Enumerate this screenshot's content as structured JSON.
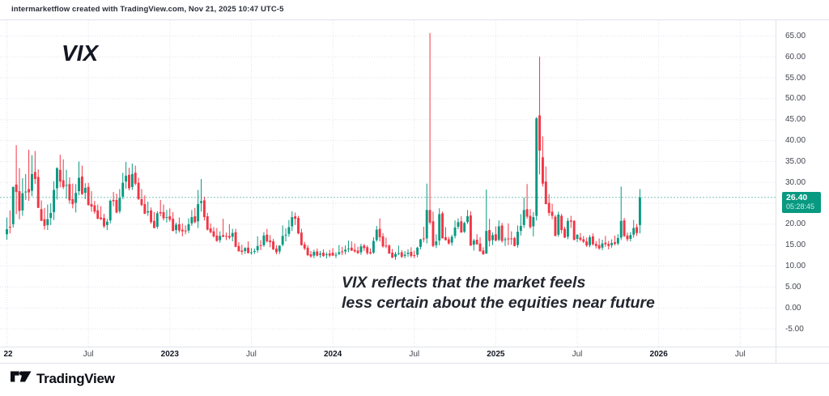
{
  "header": {
    "credit": "intermarketflow created with TradingView.com, Nov 21, 2025 10:47 UTC-5"
  },
  "title": {
    "symbol": "VIX"
  },
  "annotation": {
    "line1": "VIX reflects that the market feels",
    "line2": "less certain about the equities near future"
  },
  "price_badge": {
    "price": "26.40",
    "countdown": "05:28:45"
  },
  "footer": {
    "brand": "TradingView"
  },
  "colors": {
    "up": "#089981",
    "down": "#f23645",
    "grid": "#dde1e9",
    "axis_border": "#e0e3eb",
    "price_line": "#089981",
    "badge_bg": "#089981",
    "text_dark": "#131722",
    "axis_text": "#42464f"
  },
  "price_axis": {
    "ticks": [
      {
        "label": "65.00",
        "value": 65
      },
      {
        "label": "60.00",
        "value": 60
      },
      {
        "label": "55.00",
        "value": 55
      },
      {
        "label": "50.00",
        "value": 50
      },
      {
        "label": "45.00",
        "value": 45
      },
      {
        "label": "40.00",
        "value": 40
      },
      {
        "label": "35.00",
        "value": 35
      },
      {
        "label": "30.00",
        "value": 30
      },
      {
        "label": "25.00",
        "value": 25
      },
      {
        "label": "20.00",
        "value": 20
      },
      {
        "label": "15.00",
        "value": 15
      },
      {
        "label": "10.00",
        "value": 10
      },
      {
        "label": "5.00",
        "value": 5
      },
      {
        "label": "0.00",
        "value": 0
      },
      {
        "label": "-5.00",
        "value": -5
      }
    ]
  },
  "time_axis": {
    "ticks": [
      {
        "label": "22",
        "week": 0,
        "bold": true
      },
      {
        "label": "Jul",
        "week": 26,
        "bold": false
      },
      {
        "label": "2023",
        "week": 52,
        "bold": true
      },
      {
        "label": "Jul",
        "week": 78,
        "bold": false
      },
      {
        "label": "2024",
        "week": 104,
        "bold": true
      },
      {
        "label": "Jul",
        "week": 130,
        "bold": false
      },
      {
        "label": "2025",
        "week": 156,
        "bold": true
      },
      {
        "label": "Jul",
        "week": 182,
        "bold": false
      },
      {
        "label": "2026",
        "week": 208,
        "bold": true
      },
      {
        "label": "Jul",
        "week": 234,
        "bold": false
      }
    ]
  },
  "chart_data": {
    "type": "candlestick",
    "symbol": "VIX",
    "timeframe": "weekly",
    "ylim": [
      -9.25,
      68.75
    ],
    "grid": true,
    "last_price": 26.4,
    "x_start_label": "Jan 2022",
    "x_end_label": "Nov 2025",
    "ohlc_weekly": [
      [
        17.6,
        21.6,
        16.3,
        18.8
      ],
      [
        19.4,
        23.3,
        17.8,
        19.2
      ],
      [
        20.0,
        29.0,
        19.2,
        28.9
      ],
      [
        29.5,
        38.9,
        22.4,
        27.7
      ],
      [
        27.9,
        33.4,
        21.2,
        23.2
      ],
      [
        23.3,
        31.0,
        22.0,
        27.4
      ],
      [
        27.7,
        32.0,
        25.8,
        27.8
      ],
      [
        28.4,
        37.8,
        25.6,
        27.6
      ],
      [
        28.0,
        36.5,
        26.7,
        32.0
      ],
      [
        32.5,
        37.5,
        29.6,
        30.8
      ],
      [
        31.3,
        33.1,
        23.9,
        23.9
      ],
      [
        23.6,
        25.7,
        20.8,
        20.8
      ],
      [
        21.2,
        23.9,
        18.7,
        19.6
      ],
      [
        19.8,
        24.7,
        18.6,
        21.2
      ],
      [
        21.5,
        25.0,
        19.8,
        22.7
      ],
      [
        22.9,
        30.3,
        21.0,
        28.2
      ],
      [
        28.6,
        33.6,
        25.9,
        33.4
      ],
      [
        33.0,
        36.6,
        28.8,
        30.2
      ],
      [
        30.5,
        35.5,
        28.4,
        28.9
      ],
      [
        29.2,
        33.0,
        26.1,
        29.4
      ],
      [
        29.6,
        31.2,
        24.9,
        25.7
      ],
      [
        26.0,
        29.7,
        23.8,
        24.8
      ],
      [
        25.1,
        29.6,
        22.8,
        27.5
      ],
      [
        27.9,
        35.0,
        26.9,
        31.1
      ],
      [
        31.4,
        34.0,
        27.0,
        27.2
      ],
      [
        27.5,
        29.8,
        26.0,
        28.7
      ],
      [
        28.9,
        29.9,
        24.4,
        24.6
      ],
      [
        24.8,
        27.9,
        23.0,
        24.2
      ],
      [
        24.5,
        25.6,
        22.5,
        23.0
      ],
      [
        23.3,
        24.7,
        21.2,
        21.3
      ],
      [
        21.6,
        24.3,
        21.0,
        21.2
      ],
      [
        21.5,
        22.5,
        19.1,
        19.5
      ],
      [
        19.8,
        21.3,
        18.6,
        20.6
      ],
      [
        20.9,
        25.9,
        20.2,
        25.6
      ],
      [
        25.8,
        27.7,
        24.3,
        25.5
      ],
      [
        25.8,
        27.3,
        22.6,
        22.8
      ],
      [
        23.1,
        28.4,
        22.6,
        26.3
      ],
      [
        26.6,
        32.3,
        26.0,
        29.9
      ],
      [
        30.2,
        34.9,
        28.5,
        31.6
      ],
      [
        31.8,
        33.5,
        28.1,
        28.6
      ],
      [
        28.9,
        34.5,
        28.2,
        32.0
      ],
      [
        32.3,
        34.0,
        29.3,
        29.7
      ],
      [
        29.9,
        31.1,
        25.8,
        26.0
      ],
      [
        26.0,
        28.4,
        24.3,
        24.6
      ],
      [
        24.8,
        26.9,
        22.4,
        22.5
      ],
      [
        22.8,
        25.4,
        22.0,
        23.1
      ],
      [
        23.3,
        24.0,
        20.1,
        20.5
      ],
      [
        20.8,
        22.9,
        19.0,
        19.1
      ],
      [
        19.4,
        23.1,
        18.9,
        22.6
      ],
      [
        22.9,
        25.8,
        21.9,
        22.6
      ],
      [
        22.9,
        24.7,
        20.9,
        21.4
      ],
      [
        21.6,
        23.4,
        20.4,
        21.7
      ],
      [
        21.9,
        23.8,
        20.6,
        21.1
      ],
      [
        21.3,
        22.9,
        18.3,
        18.4
      ],
      [
        18.6,
        20.4,
        17.7,
        19.9
      ],
      [
        20.0,
        21.6,
        18.0,
        18.5
      ],
      [
        18.7,
        20.2,
        17.1,
        18.3
      ],
      [
        18.5,
        19.7,
        17.6,
        18.3
      ],
      [
        18.5,
        21.4,
        17.9,
        20.0
      ],
      [
        20.2,
        23.4,
        19.6,
        21.7
      ],
      [
        21.9,
        23.9,
        20.2,
        20.5
      ],
      [
        20.7,
        28.2,
        19.1,
        24.8
      ],
      [
        25.1,
        30.8,
        23.0,
        25.5
      ],
      [
        25.7,
        26.6,
        20.9,
        21.7
      ],
      [
        21.9,
        22.7,
        18.5,
        18.7
      ],
      [
        19.0,
        20.2,
        17.8,
        18.1
      ],
      [
        18.3,
        19.3,
        16.8,
        17.1
      ],
      [
        17.3,
        19.1,
        15.8,
        16.0
      ],
      [
        16.2,
        18.3,
        15.6,
        17.2
      ],
      [
        17.4,
        21.3,
        16.9,
        17.0
      ],
      [
        17.2,
        18.0,
        16.2,
        17.0
      ],
      [
        17.2,
        20.0,
        16.4,
        16.8
      ],
      [
        17.0,
        18.9,
        15.9,
        17.9
      ],
      [
        18.1,
        18.9,
        14.5,
        14.6
      ],
      [
        14.8,
        15.7,
        13.5,
        13.5
      ],
      [
        13.7,
        15.1,
        12.7,
        13.4
      ],
      [
        13.6,
        14.5,
        12.9,
        14.3
      ],
      [
        14.4,
        15.9,
        13.0,
        13.1
      ],
      [
        13.3,
        14.3,
        12.7,
        13.3
      ],
      [
        13.5,
        14.2,
        12.9,
        13.6
      ],
      [
        13.8,
        17.1,
        13.2,
        14.8
      ],
      [
        15.0,
        16.2,
        13.8,
        14.8
      ],
      [
        15.0,
        18.1,
        14.6,
        17.3
      ],
      [
        17.5,
        18.9,
        15.6,
        15.9
      ],
      [
        16.1,
        17.4,
        14.5,
        15.7
      ],
      [
        15.9,
        16.5,
        13.8,
        14.0
      ],
      [
        14.2,
        15.0,
        12.8,
        13.3
      ],
      [
        13.5,
        14.9,
        12.9,
        14.9
      ],
      [
        15.1,
        19.7,
        14.7,
        17.2
      ],
      [
        17.4,
        19.0,
        15.9,
        17.5
      ],
      [
        17.7,
        21.0,
        17.0,
        19.3
      ],
      [
        19.5,
        23.1,
        18.4,
        21.7
      ],
      [
        21.9,
        22.8,
        19.8,
        21.3
      ],
      [
        21.5,
        22.0,
        17.6,
        17.8
      ],
      [
        18.0,
        18.9,
        14.9,
        15.0
      ],
      [
        15.2,
        15.8,
        13.8,
        14.2
      ],
      [
        14.4,
        15.0,
        12.4,
        12.6
      ],
      [
        12.8,
        13.6,
        12.0,
        12.3
      ],
      [
        12.5,
        13.9,
        11.9,
        13.4
      ],
      [
        13.5,
        14.2,
        12.3,
        12.5
      ],
      [
        12.7,
        13.6,
        12.0,
        13.0
      ],
      [
        13.2,
        14.0,
        12.2,
        12.4
      ],
      [
        12.6,
        13.3,
        11.8,
        12.8
      ],
      [
        13.0,
        13.9,
        12.1,
        12.5
      ],
      [
        13.2,
        14.3,
        12.4,
        12.5
      ],
      [
        12.7,
        13.3,
        11.9,
        12.7
      ],
      [
        12.9,
        15.0,
        12.6,
        13.3
      ],
      [
        13.5,
        14.6,
        12.6,
        13.3
      ],
      [
        13.5,
        14.9,
        12.8,
        13.9
      ],
      [
        14.1,
        16.1,
        13.3,
        14.2
      ],
      [
        14.4,
        15.9,
        13.6,
        13.7
      ],
      [
        13.9,
        15.4,
        13.2,
        13.5
      ],
      [
        13.7,
        14.6,
        12.9,
        13.1
      ],
      [
        13.3,
        15.3,
        12.7,
        14.7
      ],
      [
        14.9,
        15.3,
        13.6,
        14.3
      ],
      [
        14.5,
        14.9,
        12.7,
        13.1
      ],
      [
        13.3,
        14.2,
        12.8,
        13.0
      ],
      [
        13.2,
        16.9,
        12.9,
        16.0
      ],
      [
        16.2,
        19.6,
        15.8,
        18.7
      ],
      [
        18.9,
        21.4,
        15.9,
        16.9
      ],
      [
        17.1,
        17.9,
        14.4,
        14.7
      ],
      [
        14.9,
        16.8,
        14.3,
        14.7
      ],
      [
        14.9,
        15.2,
        12.9,
        13.0
      ],
      [
        13.2,
        14.1,
        11.9,
        12.0
      ],
      [
        12.2,
        13.4,
        11.5,
        12.9
      ],
      [
        13.1,
        14.9,
        12.6,
        13.1
      ],
      [
        13.3,
        13.8,
        11.9,
        12.2
      ],
      [
        12.4,
        13.6,
        11.9,
        12.7
      ],
      [
        12.9,
        14.0,
        12.2,
        13.2
      ],
      [
        13.4,
        14.5,
        12.0,
        12.4
      ],
      [
        12.6,
        13.7,
        11.9,
        12.5
      ],
      [
        12.7,
        14.6,
        12.1,
        14.4
      ],
      [
        14.6,
        16.5,
        14.0,
        16.4
      ],
      [
        16.6,
        19.4,
        15.7,
        16.4
      ],
      [
        16.6,
        29.7,
        15.4,
        23.4
      ],
      [
        23.4,
        65.7,
        19.9,
        20.4
      ],
      [
        20.7,
        23.0,
        14.5,
        14.8
      ],
      [
        15.0,
        17.6,
        14.3,
        15.9
      ],
      [
        16.1,
        23.8,
        15.0,
        22.4
      ],
      [
        22.6,
        23.0,
        16.6,
        16.6
      ],
      [
        16.9,
        19.3,
        16.1,
        16.2
      ],
      [
        16.4,
        17.0,
        15.1,
        15.4
      ],
      [
        15.6,
        17.5,
        14.9,
        17.0
      ],
      [
        17.2,
        20.9,
        16.6,
        19.2
      ],
      [
        19.4,
        21.4,
        18.8,
        20.5
      ],
      [
        20.7,
        21.9,
        18.0,
        18.0
      ],
      [
        18.2,
        20.6,
        17.9,
        20.3
      ],
      [
        20.5,
        23.4,
        20.1,
        21.9
      ],
      [
        22.1,
        23.1,
        14.8,
        14.9
      ],
      [
        15.1,
        16.5,
        13.7,
        16.1
      ],
      [
        16.3,
        17.6,
        15.1,
        15.2
      ],
      [
        15.4,
        16.9,
        13.5,
        13.5
      ],
      [
        13.7,
        14.5,
        12.7,
        12.8
      ],
      [
        13.0,
        28.3,
        12.9,
        18.4
      ],
      [
        18.6,
        21.3,
        14.7,
        16.0
      ],
      [
        16.2,
        18.0,
        15.0,
        17.4
      ],
      [
        17.6,
        19.5,
        15.9,
        16.1
      ],
      [
        16.3,
        20.9,
        15.9,
        19.5
      ],
      [
        19.7,
        20.3,
        15.6,
        16.0
      ],
      [
        16.2,
        16.9,
        14.8,
        16.4
      ],
      [
        16.6,
        20.2,
        15.0,
        16.4
      ],
      [
        16.6,
        18.3,
        15.1,
        16.5
      ],
      [
        16.7,
        17.0,
        14.7,
        14.8
      ],
      [
        15.0,
        19.7,
        14.4,
        18.2
      ],
      [
        18.4,
        22.4,
        17.3,
        19.6
      ],
      [
        19.8,
        26.4,
        19.1,
        23.4
      ],
      [
        23.6,
        29.6,
        21.3,
        21.8
      ],
      [
        22.0,
        23.6,
        18.9,
        19.3
      ],
      [
        19.5,
        22.9,
        17.1,
        21.7
      ],
      [
        22.0,
        45.6,
        20.9,
        45.3
      ],
      [
        46.0,
        60.1,
        31.9,
        37.6
      ],
      [
        36.0,
        41.0,
        29.0,
        29.7
      ],
      [
        30.2,
        33.8,
        24.8,
        24.8
      ],
      [
        25.1,
        27.2,
        22.0,
        22.7
      ],
      [
        23.0,
        24.9,
        21.2,
        22.0
      ],
      [
        21.8,
        22.2,
        17.1,
        17.2
      ],
      [
        17.5,
        23.0,
        17.0,
        22.3
      ],
      [
        22.0,
        22.5,
        17.8,
        18.6
      ],
      [
        18.9,
        19.4,
        16.7,
        16.8
      ],
      [
        17.0,
        21.5,
        16.4,
        20.8
      ],
      [
        20.9,
        22.0,
        19.1,
        20.6
      ],
      [
        20.8,
        21.0,
        16.1,
        16.3
      ],
      [
        16.5,
        17.6,
        15.7,
        17.5
      ],
      [
        16.8,
        17.9,
        15.9,
        16.3
      ],
      [
        16.4,
        17.2,
        15.5,
        15.8
      ],
      [
        15.9,
        16.8,
        14.6,
        14.9
      ],
      [
        15.0,
        17.4,
        14.5,
        16.9
      ],
      [
        17.1,
        17.8,
        14.9,
        15.2
      ],
      [
        15.3,
        16.0,
        14.2,
        14.8
      ],
      [
        15.0,
        16.6,
        13.9,
        14.2
      ],
      [
        14.4,
        16.3,
        13.8,
        15.4
      ],
      [
        15.6,
        17.2,
        14.6,
        15.2
      ],
      [
        15.3,
        16.0,
        14.0,
        14.8
      ],
      [
        15.0,
        16.4,
        14.4,
        15.5
      ],
      [
        15.7,
        17.3,
        14.9,
        15.3
      ],
      [
        15.4,
        17.6,
        15.0,
        16.7
      ],
      [
        16.8,
        29.0,
        16.2,
        20.8
      ],
      [
        20.9,
        21.5,
        16.9,
        17.2
      ],
      [
        17.3,
        18.0,
        15.9,
        16.4
      ],
      [
        16.5,
        18.1,
        15.9,
        17.4
      ],
      [
        17.5,
        21.0,
        16.8,
        19.1
      ],
      [
        19.3,
        20.1,
        17.2,
        17.9
      ],
      [
        19.8,
        28.4,
        17.8,
        26.4
      ]
    ]
  }
}
